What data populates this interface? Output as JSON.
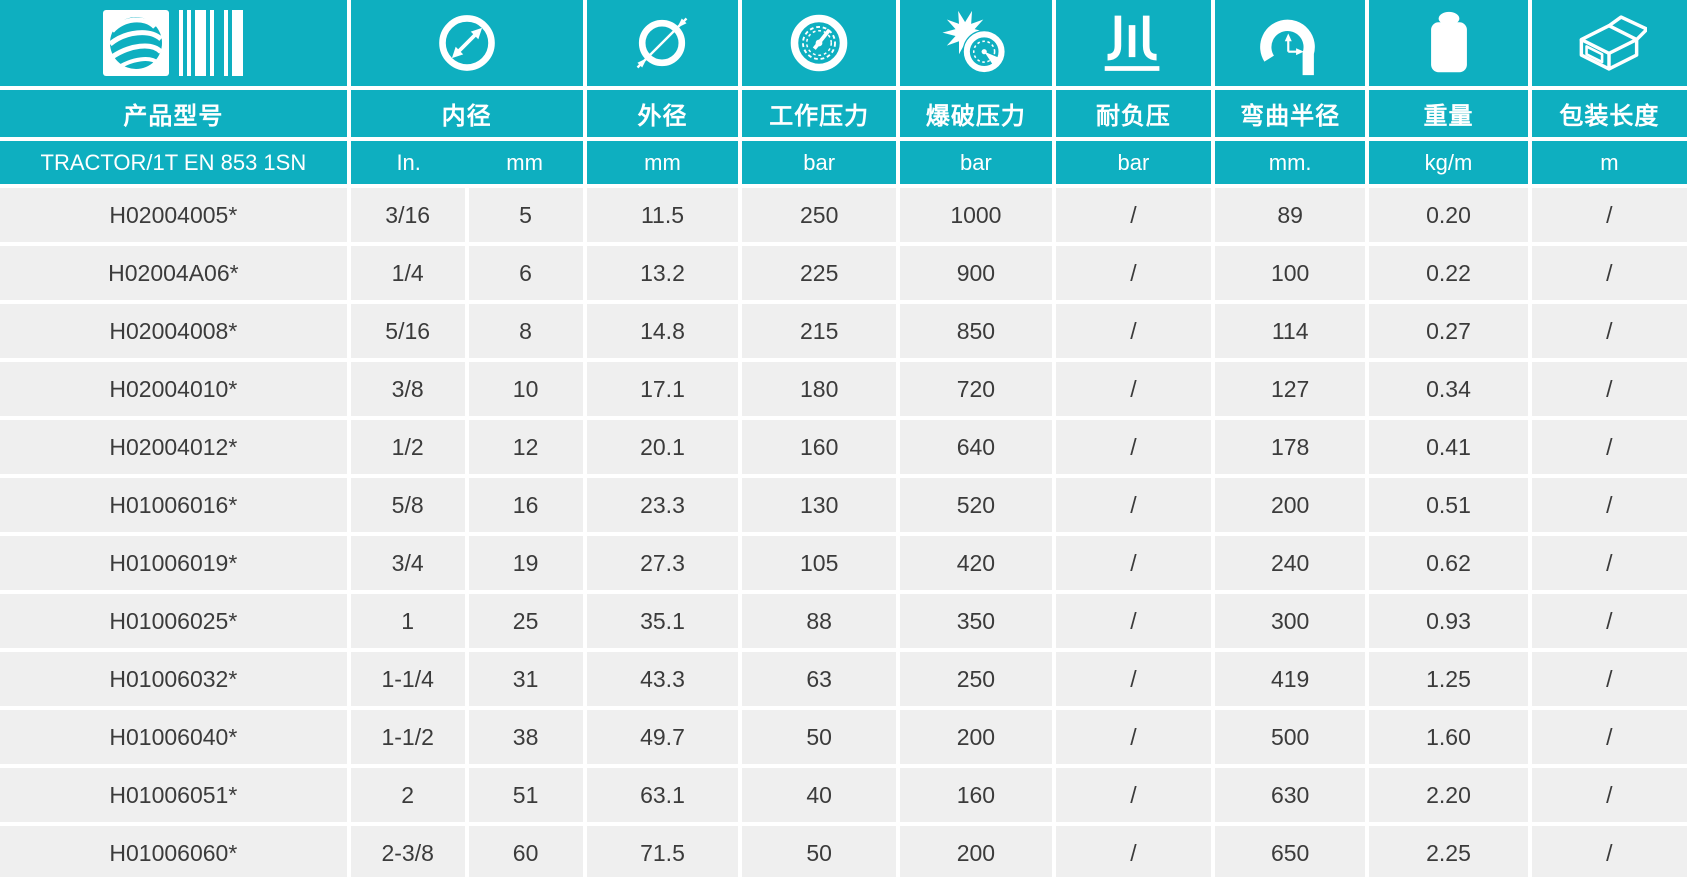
{
  "table": {
    "series": "TRACTOR/1T EN 853 1SN",
    "header": {
      "product": {
        "zh": "产品型号",
        "icon": "brand-barcode-icon"
      },
      "inner": {
        "zh": "内径",
        "icon": "inner-diameter-icon",
        "units": [
          "In.",
          "mm"
        ]
      },
      "outer": {
        "zh": "外径",
        "icon": "outer-diameter-icon",
        "unit": "mm"
      },
      "working": {
        "zh": "工作压力",
        "icon": "working-pressure-gauge-icon",
        "unit": "bar"
      },
      "burst": {
        "zh": "爆破压力",
        "icon": "burst-pressure-icon",
        "unit": "bar"
      },
      "vacuum": {
        "zh": "耐负压",
        "icon": "vacuum-resistance-icon",
        "unit": "bar"
      },
      "bend": {
        "zh": "弯曲半径",
        "icon": "bend-radius-icon",
        "unit": "mm."
      },
      "weight": {
        "zh": "重量",
        "icon": "weight-icon",
        "unit": "kg/m"
      },
      "pack": {
        "zh": "包装长度",
        "icon": "package-length-icon",
        "unit": "m"
      }
    },
    "rows": [
      [
        "H02004005*",
        "3/16",
        "5",
        "11.5",
        "250",
        "1000",
        "/",
        "89",
        "0.20",
        "/"
      ],
      [
        "H02004A06*",
        "1/4",
        "6",
        "13.2",
        "225",
        "900",
        "/",
        "100",
        "0.22",
        "/"
      ],
      [
        "H02004008*",
        "5/16",
        "8",
        "14.8",
        "215",
        "850",
        "/",
        "114",
        "0.27",
        "/"
      ],
      [
        "H02004010*",
        "3/8",
        "10",
        "17.1",
        "180",
        "720",
        "/",
        "127",
        "0.34",
        "/"
      ],
      [
        "H02004012*",
        "1/2",
        "12",
        "20.1",
        "160",
        "640",
        "/",
        "178",
        "0.41",
        "/"
      ],
      [
        "H01006016*",
        "5/8",
        "16",
        "23.3",
        "130",
        "520",
        "/",
        "200",
        "0.51",
        "/"
      ],
      [
        "H01006019*",
        "3/4",
        "19",
        "27.3",
        "105",
        "420",
        "/",
        "240",
        "0.62",
        "/"
      ],
      [
        "H01006025*",
        "1",
        "25",
        "35.1",
        "88",
        "350",
        "/",
        "300",
        "0.93",
        "/"
      ],
      [
        "H01006032*",
        "1-1/4",
        "31",
        "43.3",
        "63",
        "250",
        "/",
        "419",
        "1.25",
        "/"
      ],
      [
        "H01006040*",
        "1-1/2",
        "38",
        "49.7",
        "50",
        "200",
        "/",
        "500",
        "1.60",
        "/"
      ],
      [
        "H01006051*",
        "2",
        "51",
        "63.1",
        "40",
        "160",
        "/",
        "630",
        "2.20",
        "/"
      ],
      [
        "H01006060*",
        "2-3/8",
        "60",
        "71.5",
        "50",
        "200",
        "/",
        "650",
        "2.25",
        "/"
      ]
    ]
  },
  "colors": {
    "header_teal": "#0EAFC0",
    "row_background": "#EFEFEF",
    "text_dark": "#3B3B3B",
    "divider_white": "#FFFFFF"
  }
}
